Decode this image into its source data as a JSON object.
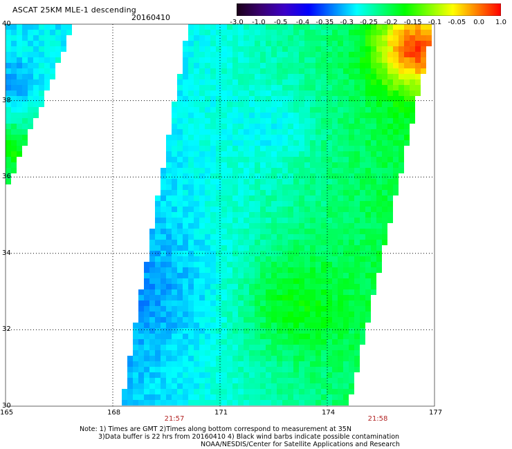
{
  "header": {
    "title": "ASCAT 25KM MLE-1 descending",
    "date": "20160410"
  },
  "colorbar": {
    "stops": [
      "#1a0018",
      "#3a0070",
      "#3b00c8",
      "#0000ff",
      "#0080ff",
      "#00ffff",
      "#00ff80",
      "#00ff00",
      "#80ff00",
      "#ffff00",
      "#ff8000",
      "#ff0000"
    ],
    "tick_labels": [
      "-3.0",
      "-1.0",
      "-0.5",
      "-0.4",
      "-0.35",
      "-0.3",
      "-0.25",
      "-0.2",
      "-0.15",
      "-0.1",
      "-0.05",
      "0.0",
      "1.0"
    ]
  },
  "map": {
    "lon_labels": [
      "165",
      "168",
      "171",
      "174",
      "177"
    ],
    "lat_labels": [
      "30",
      "32",
      "34",
      "36",
      "38",
      "40"
    ],
    "lon_range": [
      165,
      177
    ],
    "lat_range": [
      30,
      40
    ],
    "grid": true
  },
  "times": [
    "21:57",
    "21:58"
  ],
  "notes": [
    "Note: 1) Times are GMT 2)Times along bottom correspond to measurement at 35N",
    "3)Data buffer is 22 hrs from 20160410 4) Black wind barbs indicate possible contamination",
    "NOAA/NESDIS/Center for Satellite Applications and Research"
  ]
}
